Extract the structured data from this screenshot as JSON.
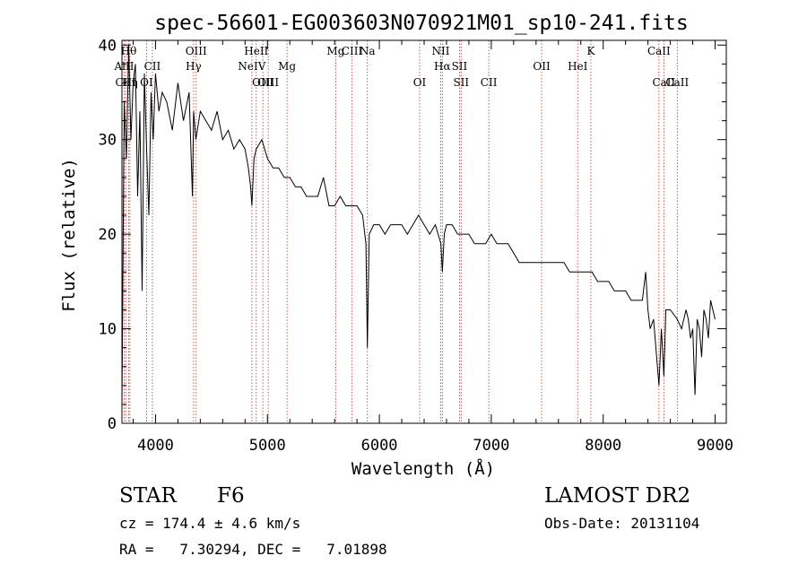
{
  "chart_data": {
    "type": "line",
    "title": "spec-56601-EG003603N070921M01_sp10-241.fits",
    "xlabel": "Wavelength (Å)",
    "ylabel": "Flux (relative)",
    "xlim": [
      3700,
      9100
    ],
    "ylim": [
      0,
      40.5
    ],
    "x_ticks": [
      "4000",
      "5000",
      "6000",
      "7000",
      "8000",
      "9000"
    ],
    "y_ticks": [
      "0",
      "10",
      "20",
      "30",
      "40"
    ],
    "grid": false,
    "series": [
      {
        "x": [
          3700,
          3720,
          3740,
          3760,
          3780,
          3800,
          3820,
          3840,
          3860,
          3880,
          3900,
          3920,
          3940,
          3960,
          3980,
          4000,
          4030,
          4060,
          4100,
          4150,
          4200,
          4250,
          4300,
          4330,
          4340,
          4360,
          4400,
          4450,
          4500,
          4550,
          4600,
          4650,
          4700,
          4750,
          4800,
          4830,
          4850,
          4861,
          4880,
          4900,
          4950,
          5000,
          5050,
          5100,
          5150,
          5200,
          5250,
          5300,
          5350,
          5400,
          5450,
          5500,
          5550,
          5600,
          5650,
          5700,
          5750,
          5800,
          5850,
          5880,
          5893,
          5910,
          5950,
          6000,
          6050,
          6100,
          6150,
          6200,
          6250,
          6300,
          6350,
          6400,
          6450,
          6500,
          6550,
          6563,
          6580,
          6600,
          6650,
          6700,
          6750,
          6800,
          6850,
          6900,
          6950,
          7000,
          7050,
          7100,
          7150,
          7200,
          7250,
          7300,
          7350,
          7400,
          7450,
          7500,
          7550,
          7600,
          7650,
          7700,
          7750,
          7800,
          7850,
          7900,
          7950,
          8000,
          8050,
          8100,
          8150,
          8200,
          8250,
          8300,
          8350,
          8380,
          8400,
          8420,
          8450,
          8498,
          8520,
          8542,
          8560,
          8600,
          8662,
          8700,
          8740,
          8760,
          8780,
          8800,
          8820,
          8840,
          8860,
          8880,
          8900,
          8920,
          8940,
          8960,
          8980,
          9000
        ],
        "y": [
          2,
          34,
          28,
          40,
          30,
          36,
          38,
          24,
          33,
          14,
          37,
          29,
          22,
          35,
          30,
          37,
          33,
          35,
          34,
          31,
          36,
          32,
          35,
          24,
          33,
          30,
          33,
          32,
          31,
          33,
          30,
          31,
          29,
          30,
          29,
          27,
          25,
          23,
          28,
          29,
          30,
          28,
          27,
          27,
          26,
          26,
          25,
          25,
          24,
          24,
          24,
          26,
          23,
          23,
          24,
          23,
          23,
          23,
          22,
          19,
          8,
          20,
          21,
          21,
          20,
          21,
          21,
          21,
          20,
          21,
          22,
          21,
          20,
          21,
          19,
          16,
          20,
          21,
          21,
          20,
          20,
          20,
          19,
          19,
          19,
          20,
          19,
          19,
          19,
          18,
          17,
          17,
          17,
          17,
          17,
          17,
          17,
          17,
          17,
          16,
          16,
          16,
          16,
          16,
          15,
          15,
          15,
          14,
          14,
          14,
          13,
          13,
          13,
          16,
          12,
          10,
          11,
          4,
          10,
          5,
          12,
          12,
          11,
          10,
          12,
          11,
          9,
          10,
          3,
          11,
          10,
          7,
          12,
          11,
          9,
          13,
          12,
          11
        ]
      }
    ],
    "lines": [
      {
        "x": 3720,
        "label": "AlII",
        "row": 2
      },
      {
        "x": 3734,
        "label": "CIII",
        "row": 3
      },
      {
        "x": 3760,
        "label": "Hθ",
        "row": 1
      },
      {
        "x": 3771,
        "label": "Hη",
        "row": 3
      },
      {
        "x": 3920,
        "label": "OI",
        "row": 3
      },
      {
        "x": 3972,
        "label": "CII",
        "row": 2
      },
      {
        "x": 4340,
        "label": "Hγ",
        "row": 2
      },
      {
        "x": 4363,
        "label": "OIII",
        "row": 1
      },
      {
        "x": 4861,
        "label": "NeIV",
        "row": 2
      },
      {
        "x": 4900,
        "label": "HeII",
        "row": 1
      },
      {
        "x": 4959,
        "label": "OIII",
        "row": 3
      },
      {
        "x": 5007,
        "label": "OIII",
        "row": 3
      },
      {
        "x": 5175,
        "label": "Mg",
        "row": 2
      },
      {
        "x": 5610,
        "label": "Mg",
        "row": 1
      },
      {
        "x": 5755,
        "label": "CIII",
        "row": 1
      },
      {
        "x": 5893,
        "label": "Na",
        "row": 1
      },
      {
        "x": 6360,
        "label": "OI",
        "row": 3
      },
      {
        "x": 6548,
        "label": "NII",
        "row": 1
      },
      {
        "x": 6563,
        "label": "Hα",
        "row": 2
      },
      {
        "x": 6716,
        "label": "SII",
        "row": 2
      },
      {
        "x": 6731,
        "label": "SII",
        "row": 3
      },
      {
        "x": 6978,
        "label": "CII",
        "row": 3
      },
      {
        "x": 7450,
        "label": "OII",
        "row": 2
      },
      {
        "x": 7772,
        "label": "HeI",
        "row": 2
      },
      {
        "x": 7890,
        "label": "K",
        "row": 1
      },
      {
        "x": 8498,
        "label": "CaII",
        "row": 1
      },
      {
        "x": 8542,
        "label": "CaII",
        "row": 3
      },
      {
        "x": 8662,
        "label": "CaII",
        "row": 3
      }
    ]
  },
  "info": {
    "class_type": "STAR",
    "subclass": "F6",
    "survey": "LAMOST DR2",
    "redshift": "cz = 174.4 ± 4.6 km/s",
    "obs_date": "Obs-Date: 20131104",
    "coords": "RA =   7.30294, DEC =   7.01898"
  }
}
